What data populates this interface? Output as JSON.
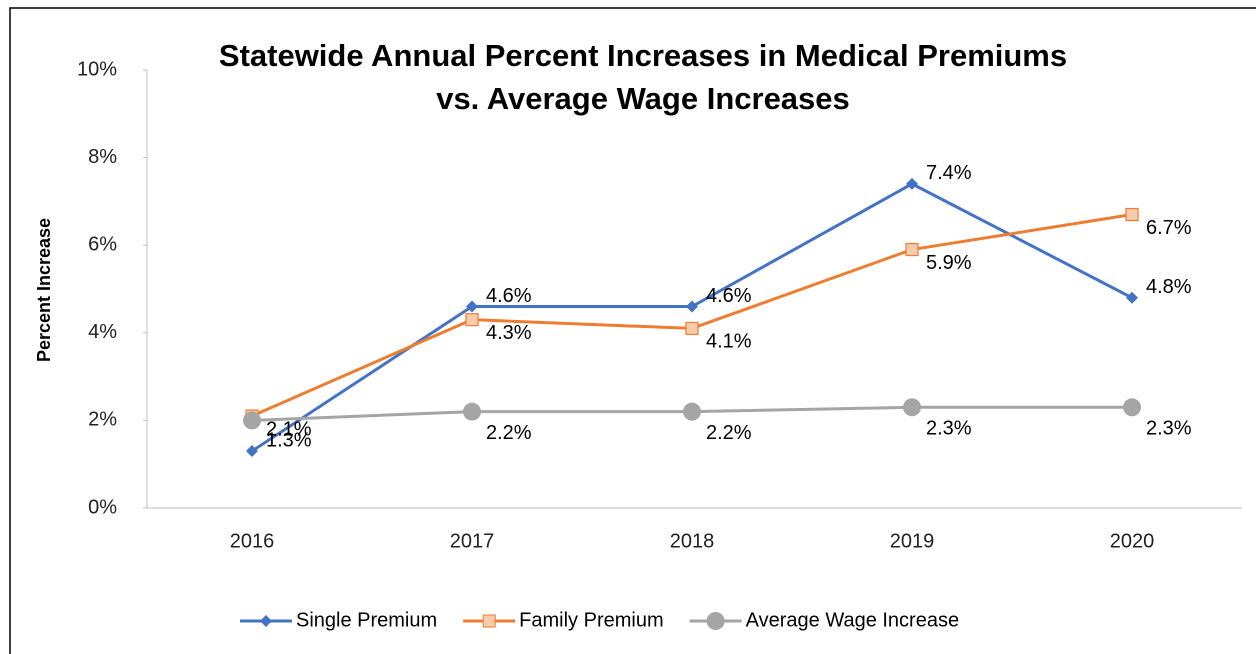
{
  "chart_data": {
    "type": "line",
    "title": "Statewide Annual Percent Increases in Medical Premiums",
    "subtitle": "vs. Average Wage Increases",
    "y_axis_label": "Percent Increase",
    "categories": [
      "2016",
      "2017",
      "2018",
      "2019",
      "2020"
    ],
    "series": [
      {
        "name": "Single Premium",
        "color": "#4472c4",
        "marker": "diamond",
        "values": [
          1.3,
          4.6,
          4.6,
          7.4,
          4.8
        ],
        "value_labels": [
          "1.3%",
          "4.6%",
          "4.6%",
          "7.4%",
          "4.8%"
        ]
      },
      {
        "name": "Family Premium",
        "color": "#ed7d31",
        "marker": "square",
        "values": [
          2.1,
          4.3,
          4.1,
          5.9,
          6.7
        ],
        "value_labels": [
          "2.1%",
          "4.3%",
          "4.1%",
          "5.9%",
          "6.7%"
        ]
      },
      {
        "name": "Average Wage Increase",
        "color": "#a5a5a5",
        "marker": "circle",
        "values": [
          2.0,
          2.2,
          2.2,
          2.3,
          2.3
        ],
        "value_labels": [
          null,
          "2.2%",
          "2.2%",
          "2.3%",
          "2.3%"
        ]
      }
    ],
    "ylim": [
      0,
      10
    ],
    "yticks": [
      {
        "value": 0,
        "label": "0%"
      },
      {
        "value": 2,
        "label": "2%"
      },
      {
        "value": 4,
        "label": "4%"
      },
      {
        "value": 6,
        "label": "6%"
      },
      {
        "value": 8,
        "label": "8%"
      },
      {
        "value": 10,
        "label": "10%"
      }
    ],
    "grid": false,
    "legend": "bottom"
  }
}
